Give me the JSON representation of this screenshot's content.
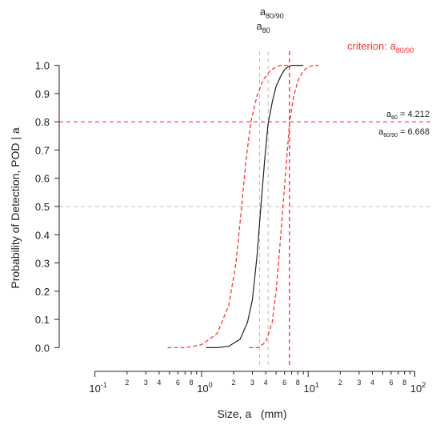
{
  "chart_data": {
    "type": "line",
    "title": "",
    "xlabel": "Size, a   (mm)",
    "ylabel": "Probability of Detection, POD | a",
    "xscale": "log",
    "xlim": [
      0.07,
      140
    ],
    "ylim": [
      -0.05,
      1.05
    ],
    "y_ticks": [
      0.0,
      0.1,
      0.2,
      0.3,
      0.4,
      0.5,
      0.6,
      0.7,
      0.8,
      0.9,
      1.0
    ],
    "y_tick_labels": [
      "0.0",
      "0.1",
      "0.2",
      "0.3",
      "0.4",
      "0.5",
      "0.6",
      "0.7",
      "0.8",
      "0.9",
      "1.0"
    ],
    "x_major_ticks": [
      {
        "value": 0.1,
        "base": "10",
        "exp": "-1"
      },
      {
        "value": 1,
        "base": "10",
        "exp": "0"
      },
      {
        "value": 10,
        "base": "10",
        "exp": "1"
      },
      {
        "value": 100,
        "base": "10",
        "exp": "2"
      }
    ],
    "x_minor_ticks": [
      {
        "value": 0.2,
        "label": "2"
      },
      {
        "value": 0.3,
        "label": "3"
      },
      {
        "value": 0.4,
        "label": "4"
      },
      {
        "value": 0.6,
        "label": "6"
      },
      {
        "value": 0.8,
        "label": "8"
      },
      {
        "value": 2,
        "label": "2"
      },
      {
        "value": 3,
        "label": "3"
      },
      {
        "value": 4,
        "label": "4"
      },
      {
        "value": 6,
        "label": "6"
      },
      {
        "value": 8,
        "label": "8"
      },
      {
        "value": 20,
        "label": "2"
      },
      {
        "value": 30,
        "label": "3"
      },
      {
        "value": 40,
        "label": "4"
      },
      {
        "value": 60,
        "label": "6"
      },
      {
        "value": 80,
        "label": "8"
      }
    ],
    "x_minor_unlabeled": [
      0.5,
      0.7,
      0.9,
      5,
      7,
      9,
      50,
      70,
      90
    ],
    "grid": false,
    "series": [
      {
        "style": "solid",
        "color": "#222222",
        "points": [
          [
            1.1,
            0.0
          ],
          [
            1.4,
            0.0
          ],
          [
            1.8,
            0.005
          ],
          [
            2.3,
            0.03
          ],
          [
            2.7,
            0.09
          ],
          [
            3.0,
            0.17
          ],
          [
            3.3,
            0.32
          ],
          [
            3.6,
            0.5
          ],
          [
            3.9,
            0.66
          ],
          [
            4.2,
            0.79
          ],
          [
            4.6,
            0.87
          ],
          [
            5.0,
            0.925
          ],
          [
            5.5,
            0.96
          ],
          [
            6.0,
            0.985
          ],
          [
            6.5,
            0.995
          ],
          [
            7.1,
            1.0
          ],
          [
            8.0,
            1.0
          ],
          [
            9.0,
            1.0
          ]
        ]
      },
      {
        "style": "dashed",
        "color": "#ff3333",
        "points": [
          [
            0.48,
            0.0
          ],
          [
            0.7,
            0.0
          ],
          [
            1.0,
            0.01
          ],
          [
            1.4,
            0.05
          ],
          [
            1.8,
            0.15
          ],
          [
            2.1,
            0.3
          ],
          [
            2.35,
            0.48
          ],
          [
            2.6,
            0.66
          ],
          [
            2.9,
            0.8
          ],
          [
            3.3,
            0.89
          ],
          [
            3.8,
            0.95
          ],
          [
            4.5,
            0.985
          ],
          [
            5.5,
            1.0
          ],
          [
            7.0,
            1.0
          ]
        ]
      },
      {
        "style": "dashed",
        "color": "#ff3333",
        "points": [
          [
            2.8,
            0.0
          ],
          [
            3.4,
            0.0
          ],
          [
            4.0,
            0.02
          ],
          [
            4.6,
            0.09
          ],
          [
            5.0,
            0.2
          ],
          [
            5.4,
            0.35
          ],
          [
            5.8,
            0.5
          ],
          [
            6.2,
            0.64
          ],
          [
            6.7,
            0.8
          ],
          [
            7.3,
            0.89
          ],
          [
            8.1,
            0.95
          ],
          [
            9.0,
            0.98
          ],
          [
            10.0,
            0.995
          ],
          [
            11.5,
            1.0
          ],
          [
            12.5,
            1.0
          ]
        ]
      }
    ],
    "reference_lines": [
      {
        "axis": "x",
        "value": 3.5,
        "style": "dashed",
        "color": "#bbbbbb"
      },
      {
        "axis": "x",
        "value": 4.212,
        "style": "dashed",
        "color": "#bbbbbb"
      },
      {
        "axis": "x",
        "value": 6.668,
        "style": "dashed",
        "color": "#ff3333"
      },
      {
        "axis": "y",
        "value": 0.5,
        "style": "dashed",
        "color": "#bbbbbb"
      },
      {
        "axis": "y",
        "value": 0.8,
        "style": "dashed",
        "color": "#ff3333"
      }
    ],
    "annotations": {
      "a80_90_label": {
        "base": "a",
        "sub": "80/90",
        "x_value": 6.668
      },
      "a80_label": {
        "base": "a",
        "sub": "80",
        "x_value": 4.212
      },
      "criterion": {
        "prefix": "criterion: a",
        "sub": "80/90",
        "x_value": 6.668,
        "color": "#ff3333"
      },
      "a80_value": {
        "base": "a",
        "sub": "80",
        "text": " = 4.212"
      },
      "a8090_value": {
        "base": "a",
        "sub": "80/90",
        "text": " = 6.668"
      }
    }
  }
}
